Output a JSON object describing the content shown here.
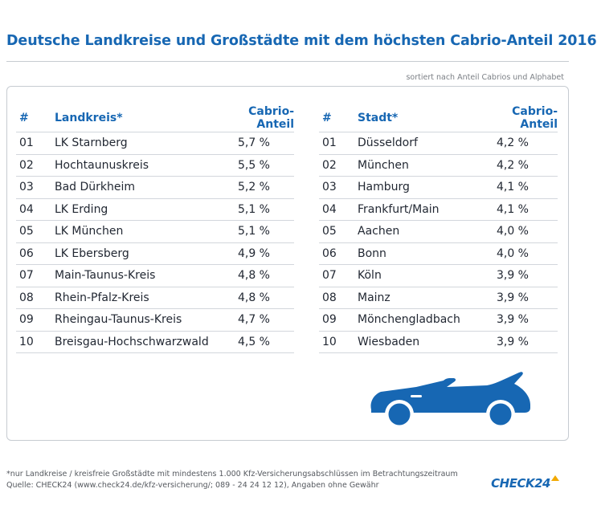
{
  "title": "Deutsche Landkreise und Großstädte mit dem höchsten Cabrio-Anteil 2016",
  "subtitle": "sortiert nach Anteil Cabrios und Alphabet",
  "left_table": {
    "headers": {
      "num": "#",
      "name": "Landkreis*",
      "value": "Cabrio-Anteil"
    },
    "rows": [
      {
        "num": "01",
        "name": "LK Starnberg",
        "value": "5,7 %"
      },
      {
        "num": "02",
        "name": "Hochtaunuskreis",
        "value": "5,5 %"
      },
      {
        "num": "03",
        "name": "Bad Dürkheim",
        "value": "5,2 %"
      },
      {
        "num": "04",
        "name": "LK Erding",
        "value": "5,1 %"
      },
      {
        "num": "05",
        "name": "LK München",
        "value": "5,1 %"
      },
      {
        "num": "06",
        "name": "LK Ebersberg",
        "value": "4,9 %"
      },
      {
        "num": "07",
        "name": "Main-Taunus-Kreis",
        "value": "4,8 %"
      },
      {
        "num": "08",
        "name": "Rhein-Pfalz-Kreis",
        "value": "4,8 %"
      },
      {
        "num": "09",
        "name": "Rheingau-Taunus-Kreis",
        "value": "4,7 %"
      },
      {
        "num": "10",
        "name": "Breisgau-Hochschwarzwald",
        "value": "4,5 %"
      }
    ]
  },
  "right_table": {
    "headers": {
      "num": "#",
      "name": "Stadt*",
      "value": "Cabrio-Anteil"
    },
    "rows": [
      {
        "num": "01",
        "name": "Düsseldorf",
        "value": "4,2 %"
      },
      {
        "num": "02",
        "name": "München",
        "value": "4,2 %"
      },
      {
        "num": "03",
        "name": "Hamburg",
        "value": "4,1 %"
      },
      {
        "num": "04",
        "name": "Frankfurt/Main",
        "value": "4,1 %"
      },
      {
        "num": "05",
        "name": "Aachen",
        "value": "4,0 %"
      },
      {
        "num": "06",
        "name": "Bonn",
        "value": "4,0 %"
      },
      {
        "num": "07",
        "name": "Köln",
        "value": "3,9 %"
      },
      {
        "num": "08",
        "name": "Mainz",
        "value": "3,9 %"
      },
      {
        "num": "09",
        "name": "Mönchengladbach",
        "value": "3,9 %"
      },
      {
        "num": "10",
        "name": "Wiesbaden",
        "value": "3,9 %"
      }
    ]
  },
  "illustration": {
    "icon": "convertible-car-icon",
    "color": "#1767b3"
  },
  "footnote": "*nur Landkreise / kreisfreie Großstädte mit mindestens 1.000 Kfz-Versicherungsabschlüssen im Betrachtungszeitraum",
  "source": "Quelle: CHECK24 (www.check24.de/kfz-versicherung/; 089 - 24 24 12 12), Angaben ohne Gewähr",
  "logo": {
    "text": "CHECK24",
    "color": "#1767b3",
    "accent": "#f2a900"
  },
  "colors": {
    "accent": "#1767b3",
    "rule": "#d2d6dc",
    "text": "#222833"
  }
}
